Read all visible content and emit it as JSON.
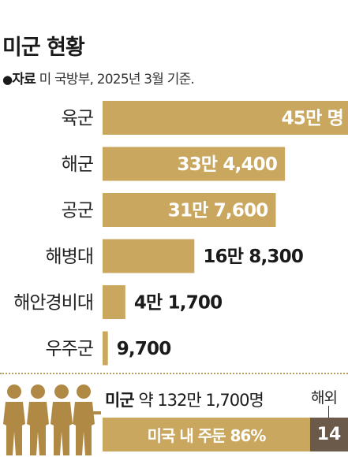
{
  "title": "미군 현황",
  "source": {
    "marker": "●",
    "label": "자료",
    "text": "미 국방부, 2025년 3월 기준."
  },
  "colors": {
    "bar": "#c9a75e",
    "dark": "#6b5a49",
    "soldier": "#b08a45"
  },
  "chart_data": {
    "type": "bar",
    "orientation": "horizontal",
    "categories": [
      "육군",
      "해군",
      "공군",
      "해병대",
      "해안경비대",
      "우주군"
    ],
    "values": [
      450000,
      334400,
      317600,
      168300,
      41700,
      9700
    ],
    "value_labels": [
      "45만 명",
      "33만 4,400",
      "31만 7,600",
      "16만 8,300",
      "4만 1,700",
      "9,700"
    ],
    "title": "미군 현황"
  },
  "summary": {
    "label": "미군",
    "text": "약 132만 1,700명",
    "domestic_label": "미국 내 주둔 86%",
    "domestic_share": 86,
    "overseas_label": "해외",
    "overseas_value": "14",
    "overseas_share": 14
  }
}
